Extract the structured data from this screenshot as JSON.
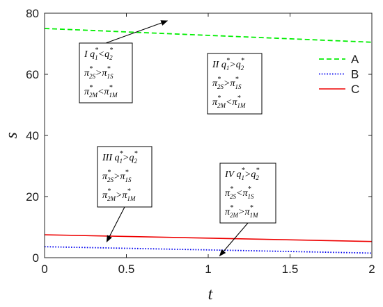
{
  "chart_data": {
    "type": "line",
    "xlabel": "t",
    "ylabel": "s",
    "xlim": [
      0,
      2
    ],
    "ylim": [
      0,
      80
    ],
    "xticks": [
      {
        "value": 0,
        "label": "0"
      },
      {
        "value": 0.5,
        "label": "0.5"
      },
      {
        "value": 1,
        "label": "1"
      },
      {
        "value": 1.5,
        "label": "1.5"
      },
      {
        "value": 2,
        "label": "2"
      }
    ],
    "yticks": [
      {
        "value": 0,
        "label": "0"
      },
      {
        "value": 20,
        "label": "20"
      },
      {
        "value": 40,
        "label": "40"
      },
      {
        "value": 60,
        "label": "60"
      },
      {
        "value": 80,
        "label": "80"
      }
    ],
    "grid": false,
    "legend_position": "top-right",
    "series": [
      {
        "name": "A",
        "color": "#00ee00",
        "style": "dashed",
        "x": [
          0,
          2
        ],
        "y": [
          75,
          70.5
        ]
      },
      {
        "name": "B",
        "color": "#0000ee",
        "style": "dotted",
        "x": [
          0,
          2
        ],
        "y": [
          3.6,
          1.5
        ]
      },
      {
        "name": "C",
        "color": "#ee0000",
        "style": "solid",
        "x": [
          0,
          2
        ],
        "y": [
          7.5,
          5.3
        ]
      }
    ],
    "annotations": [
      {
        "name": "region-1",
        "lines": [
          {
            "parts": [
              [
                "I ",
                ""
              ],
              [
                "q",
                ""
              ],
              [
                "*",
                "sup"
              ],
              [
                "1",
                "sub"
              ],
              [
                "<",
                ""
              ],
              [
                "q",
                ""
              ],
              [
                "*",
                "sup"
              ],
              [
                "2",
                "sub"
              ]
            ]
          },
          {
            "parts": [
              [
                "π",
                ""
              ],
              [
                "*",
                "sup"
              ],
              [
                "2S",
                "sub"
              ],
              [
                ">",
                ""
              ],
              [
                "π",
                ""
              ],
              [
                "*",
                "sup"
              ],
              [
                "1S",
                "sub"
              ]
            ]
          },
          {
            "parts": [
              [
                "π",
                ""
              ],
              [
                "*",
                "sup"
              ],
              [
                "2M",
                "sub"
              ],
              [
                "<",
                ""
              ],
              [
                "π",
                ""
              ],
              [
                "*",
                "sup"
              ],
              [
                "1M",
                "sub"
              ]
            ]
          }
        ],
        "arrow_to": [
          0.75,
          77.5
        ]
      },
      {
        "name": "region-2",
        "lines": [
          {
            "parts": [
              [
                "II ",
                ""
              ],
              [
                "q",
                ""
              ],
              [
                "*",
                "sup"
              ],
              [
                "1",
                "sub"
              ],
              [
                ">",
                ""
              ],
              [
                "q",
                ""
              ],
              [
                "*",
                "sup"
              ],
              [
                "2",
                "sub"
              ]
            ]
          },
          {
            "parts": [
              [
                "π",
                ""
              ],
              [
                "*",
                "sup"
              ],
              [
                "2S",
                "sub"
              ],
              [
                ">",
                ""
              ],
              [
                "π",
                ""
              ],
              [
                "*",
                "sup"
              ],
              [
                "1S",
                "sub"
              ]
            ]
          },
          {
            "parts": [
              [
                "π",
                ""
              ],
              [
                "*",
                "sup"
              ],
              [
                "2M",
                "sub"
              ],
              [
                "<",
                ""
              ],
              [
                "π",
                ""
              ],
              [
                "*",
                "sup"
              ],
              [
                "1M",
                "sub"
              ]
            ]
          }
        ],
        "arrow_to": null
      },
      {
        "name": "region-3",
        "lines": [
          {
            "parts": [
              [
                "III ",
                ""
              ],
              [
                "q",
                ""
              ],
              [
                "*",
                "sup"
              ],
              [
                "1",
                "sub"
              ],
              [
                ">",
                ""
              ],
              [
                "q",
                ""
              ],
              [
                "*",
                "sup"
              ],
              [
                "2",
                "sub"
              ]
            ]
          },
          {
            "parts": [
              [
                "π",
                ""
              ],
              [
                "*",
                "sup"
              ],
              [
                "2S",
                "sub"
              ],
              [
                ">",
                ""
              ],
              [
                "π",
                ""
              ],
              [
                "*",
                "sup"
              ],
              [
                "1S",
                "sub"
              ]
            ]
          },
          {
            "parts": [
              [
                "π",
                ""
              ],
              [
                "*",
                "sup"
              ],
              [
                "2M",
                "sub"
              ],
              [
                ">",
                ""
              ],
              [
                "π",
                ""
              ],
              [
                "*",
                "sup"
              ],
              [
                "1M",
                "sub"
              ]
            ]
          }
        ],
        "arrow_to": [
          0.38,
          5.2
        ]
      },
      {
        "name": "region-4",
        "lines": [
          {
            "parts": [
              [
                "IV ",
                ""
              ],
              [
                "q",
                ""
              ],
              [
                "*",
                "sup"
              ],
              [
                "1",
                "sub"
              ],
              [
                ">",
                ""
              ],
              [
                "q",
                ""
              ],
              [
                "*",
                "sup"
              ],
              [
                "2",
                "sub"
              ]
            ]
          },
          {
            "parts": [
              [
                "π",
                ""
              ],
              [
                "*",
                "sup"
              ],
              [
                "2S",
                "sub"
              ],
              [
                "<",
                ""
              ],
              [
                "π",
                ""
              ],
              [
                "*",
                "sup"
              ],
              [
                "1S",
                "sub"
              ]
            ]
          },
          {
            "parts": [
              [
                "π",
                ""
              ],
              [
                "*",
                "sup"
              ],
              [
                "2M",
                "sub"
              ],
              [
                ">",
                ""
              ],
              [
                "π",
                ""
              ],
              [
                "*",
                "sup"
              ],
              [
                "1M",
                "sub"
              ]
            ]
          }
        ],
        "arrow_to": [
          1.07,
          0.6
        ]
      }
    ]
  }
}
